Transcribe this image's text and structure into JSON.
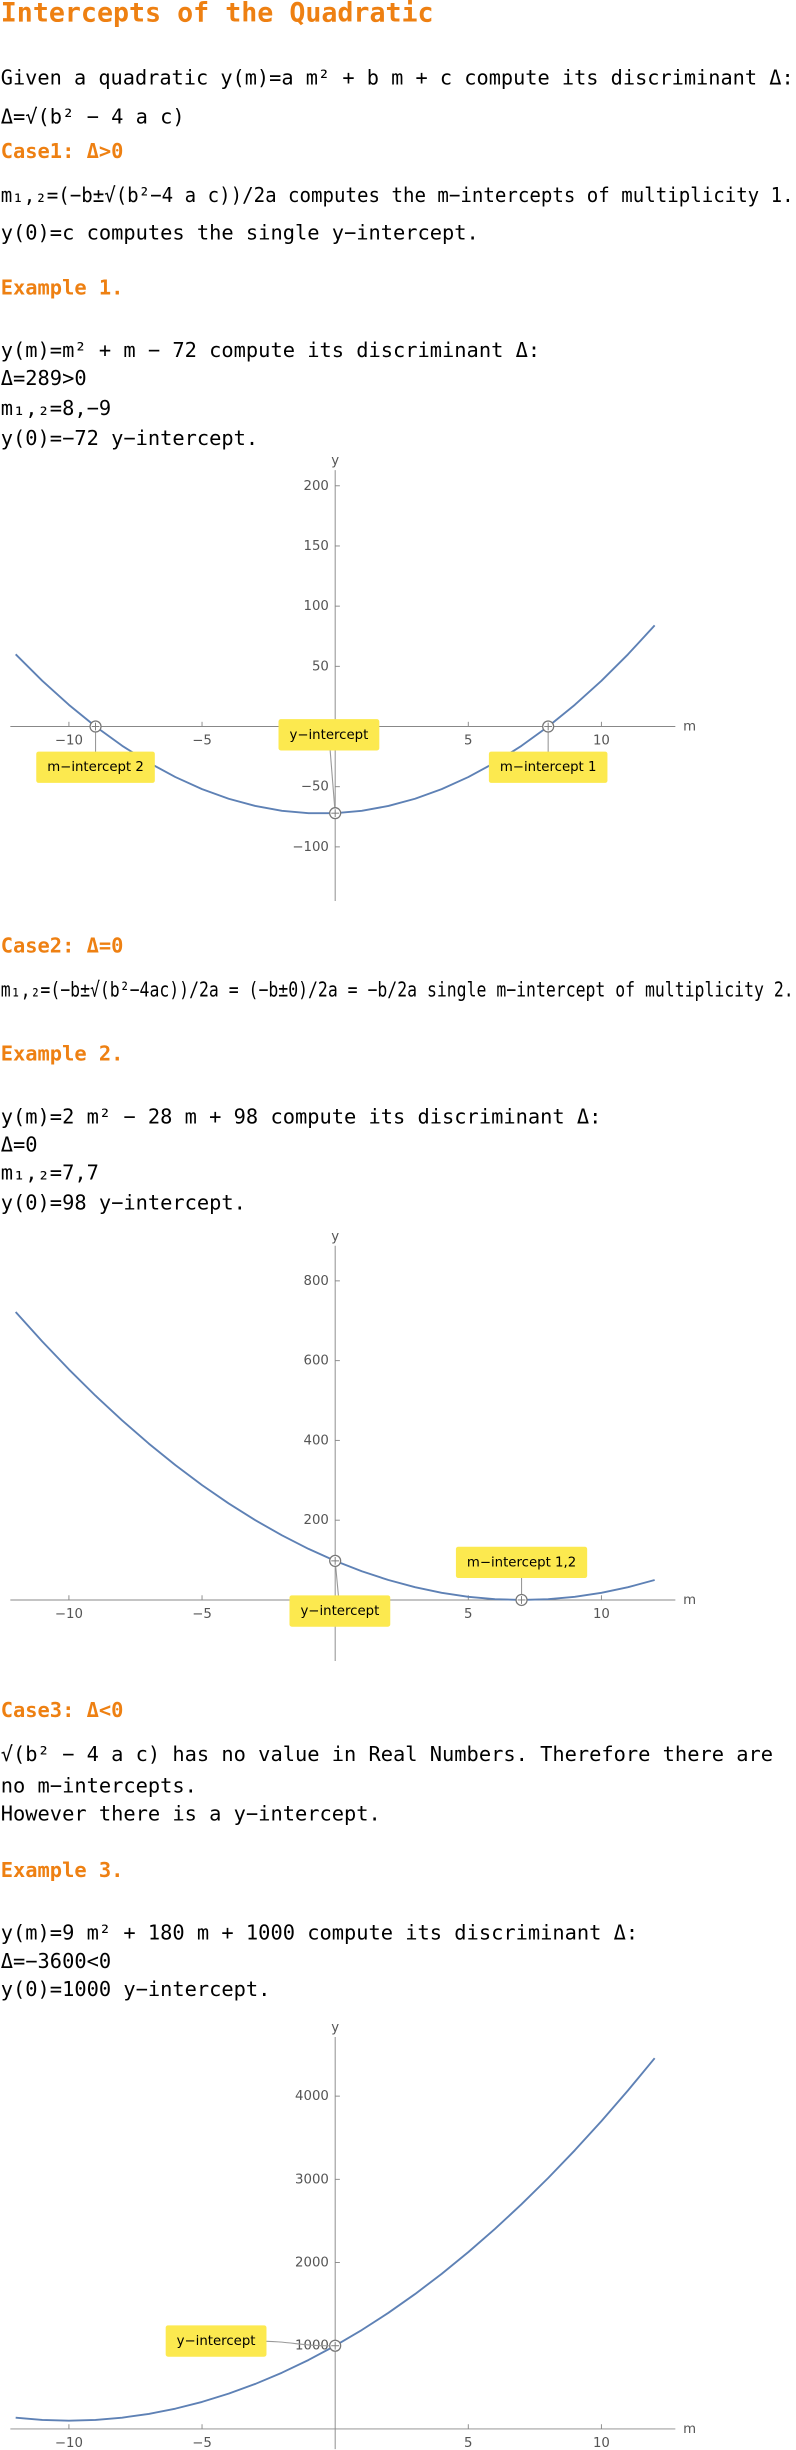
{
  "title": "Intercepts of the Quadratic",
  "intro": [
    "Given a quadratic y(m)=a m² + b m + c compute its discriminant Δ:",
    "Δ=√(b² − 4 a c)"
  ],
  "sections": [
    {
      "heading": "Case1: Δ>0",
      "text": [
        "m₁,₂=(−b±√(b²−4 a c))/2a computes the m−intercepts of multiplicity 1.",
        "y(0)=c computes the single y−intercept."
      ],
      "example": "Example 1.",
      "example_text": [
        "y(m)=m² + m − 72 compute its discriminant Δ:",
        "Δ=289>0",
        "m₁,₂=8,−9",
        "y(0)=−72 y−intercept."
      ]
    },
    {
      "heading": "Case2: Δ=0",
      "text": [
        "m₁,₂=(−b±√(b²−4ac))/2a = (−b±0)/2a = −b/2a single m−intercept of multiplicity 2."
      ],
      "example": "Example 2.",
      "example_text": [
        "y(m)=2 m² − 28 m + 98 compute its discriminant Δ:",
        "Δ=0",
        "m₁,₂=7,7",
        "y(0)=98 y−intercept."
      ]
    },
    {
      "heading": "Case3: Δ<0",
      "text": [
        "√(b² − 4 a c) has no value in Real Numbers. Therefore there are",
        "no m−intercepts.",
        "However there is a y−intercept."
      ],
      "example": "Example 3.",
      "example_text": [
        "y(m)=9 m² + 180 m + 1000 compute its discriminant Δ:",
        "Δ=−3600<0",
        "y(0)=1000 y−intercept."
      ]
    }
  ],
  "chart_data": [
    {
      "type": "line",
      "xlabel": "m",
      "ylabel": "y",
      "color": "#5e81b5",
      "x": [
        -12,
        -11,
        -10,
        -9,
        -8,
        -7,
        -6,
        -5,
        -4,
        -3,
        -2,
        -1,
        0,
        1,
        2,
        3,
        4,
        5,
        6,
        7,
        8,
        9,
        10,
        11,
        12
      ],
      "values": [
        60,
        38,
        18,
        0,
        -16,
        -30,
        -42,
        -52,
        -60,
        -66,
        -70,
        -72,
        -72,
        -70,
        -66,
        -60,
        -52,
        -42,
        -30,
        -16,
        0,
        18,
        38,
        60,
        84
      ],
      "xlim": [
        -12.2,
        12.6
      ],
      "ylim": [
        -145,
        213
      ],
      "xticks": [
        {
          "value": -10,
          "label": "−10"
        },
        {
          "value": -5,
          "label": "−5"
        },
        5,
        10
      ],
      "yticks": [
        {
          "value": -100,
          "label": "−100"
        },
        {
          "value": -50,
          "label": "−50"
        },
        50,
        100,
        150,
        200
      ],
      "points": [
        {
          "x": -9,
          "y": 0,
          "label": "m−intercept 2"
        },
        {
          "x": 8,
          "y": 0,
          "label": "m−intercept 1"
        },
        {
          "x": 0,
          "y": -72,
          "label": "y−intercept"
        }
      ]
    },
    {
      "type": "line",
      "xlabel": "m",
      "ylabel": "y",
      "color": "#5e81b5",
      "x": [
        -12,
        -11,
        -10,
        -9,
        -8,
        -7,
        -6,
        -5,
        -4,
        -3,
        -2,
        -1,
        0,
        1,
        2,
        3,
        4,
        5,
        6,
        7,
        8,
        9,
        10,
        11,
        12
      ],
      "values": [
        722,
        648,
        578,
        512,
        450,
        392,
        338,
        288,
        242,
        200,
        162,
        128,
        98,
        72,
        50,
        32,
        18,
        8,
        2,
        0,
        2,
        8,
        18,
        32,
        50
      ],
      "xlim": [
        -12.2,
        12.6
      ],
      "ylim": [
        -153,
        888
      ],
      "xticks": [
        {
          "value": -10,
          "label": "−10"
        },
        {
          "value": -5,
          "label": "−5"
        },
        5,
        10
      ],
      "yticks": [
        200,
        400,
        600,
        800
      ],
      "points": [
        {
          "x": 7,
          "y": 0,
          "label": "m−intercept 1,2"
        },
        {
          "x": 0,
          "y": 98,
          "label": "y−intercept"
        }
      ]
    },
    {
      "type": "line",
      "xlabel": "m",
      "ylabel": "y",
      "color": "#5e81b5",
      "x": [
        -12,
        -11,
        -10,
        -9,
        -8,
        -7,
        -6,
        -5,
        -4,
        -3,
        -2,
        -1,
        0,
        1,
        2,
        3,
        4,
        5,
        6,
        7,
        8,
        9,
        10,
        11,
        12
      ],
      "values": [
        136,
        109,
        100,
        109,
        136,
        181,
        244,
        325,
        424,
        541,
        676,
        829,
        1000,
        1189,
        1396,
        1621,
        1864,
        2125,
        2404,
        2701,
        3016,
        3349,
        3700,
        4069,
        4456
      ],
      "xlim": [
        -12.2,
        12.6
      ],
      "ylim": [
        -243,
        4710
      ],
      "xticks": [
        {
          "value": -10,
          "label": "−10"
        },
        {
          "value": -5,
          "label": "−5"
        },
        5,
        10
      ],
      "yticks": [
        1000,
        2000,
        3000,
        4000
      ],
      "points": [
        {
          "x": 0,
          "y": 1000,
          "label": "y−intercept"
        }
      ]
    }
  ]
}
